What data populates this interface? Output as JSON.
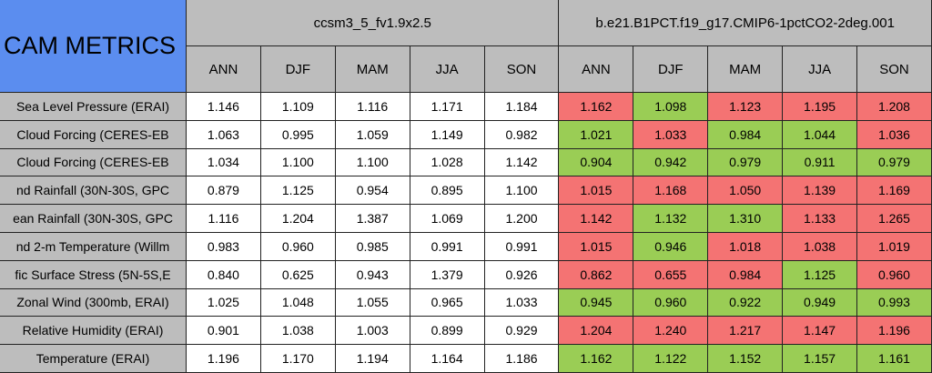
{
  "title": "CAM METRICS",
  "metrics": [
    "Sea Level Pressure (ERAI)",
    "Cloud Forcing (CERES-EB",
    "Cloud Forcing (CERES-EB",
    "nd Rainfall (30N-30S, GPC",
    "ean Rainfall (30N-30S, GPC",
    "nd 2-m Temperature (Willm",
    "fic Surface Stress (5N-5S,E",
    "Zonal Wind (300mb, ERAI)",
    "Relative Humidity (ERAI)",
    "Temperature (ERAI)"
  ],
  "cases": [
    {
      "name": "ccsm3_5_fv1.9x2.5",
      "seasons": [
        "ANN",
        "DJF",
        "MAM",
        "JJA",
        "SON"
      ],
      "values": [
        [
          "1.146",
          "1.109",
          "1.116",
          "1.171",
          "1.184"
        ],
        [
          "1.063",
          "0.995",
          "1.059",
          "1.149",
          "0.982"
        ],
        [
          "1.034",
          "1.100",
          "1.100",
          "1.028",
          "1.142"
        ],
        [
          "0.879",
          "1.125",
          "0.954",
          "0.895",
          "1.100"
        ],
        [
          "1.116",
          "1.204",
          "1.387",
          "1.069",
          "1.200"
        ],
        [
          "0.983",
          "0.960",
          "0.985",
          "0.991",
          "0.991"
        ],
        [
          "0.840",
          "0.625",
          "0.943",
          "1.379",
          "0.926"
        ],
        [
          "1.025",
          "1.048",
          "1.055",
          "0.965",
          "1.033"
        ],
        [
          "0.901",
          "1.038",
          "1.003",
          "0.899",
          "0.929"
        ],
        [
          "1.196",
          "1.170",
          "1.194",
          "1.164",
          "1.186"
        ]
      ]
    },
    {
      "name": "b.e21.B1PCT.f19_g17.CMIP6-1pctCO2-2deg.001",
      "seasons": [
        "ANN",
        "DJF",
        "MAM",
        "JJA",
        "SON"
      ],
      "values": [
        [
          "1.162",
          "1.098",
          "1.123",
          "1.195",
          "1.208"
        ],
        [
          "1.021",
          "1.033",
          "0.984",
          "1.044",
          "1.036"
        ],
        [
          "0.904",
          "0.942",
          "0.979",
          "0.911",
          "0.979"
        ],
        [
          "1.015",
          "1.168",
          "1.050",
          "1.139",
          "1.169"
        ],
        [
          "1.142",
          "1.132",
          "1.310",
          "1.133",
          "1.265"
        ],
        [
          "1.015",
          "0.946",
          "1.018",
          "1.038",
          "1.019"
        ],
        [
          "0.862",
          "0.655",
          "0.984",
          "1.125",
          "0.960"
        ],
        [
          "0.945",
          "0.960",
          "0.922",
          "0.949",
          "0.993"
        ],
        [
          "1.204",
          "1.240",
          "1.217",
          "1.147",
          "1.196"
        ],
        [
          "1.162",
          "1.122",
          "1.152",
          "1.157",
          "1.161"
        ]
      ]
    }
  ]
}
